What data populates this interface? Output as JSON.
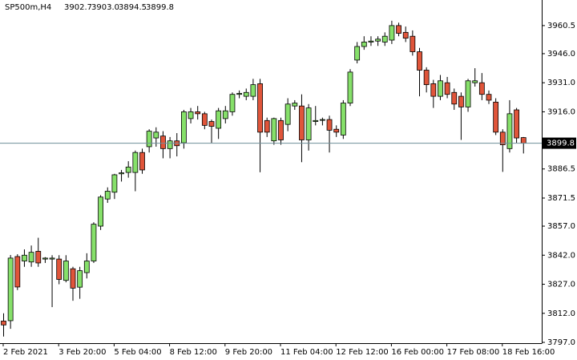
{
  "chart_data": {
    "type": "candlestick",
    "title": "SP500m,H4",
    "ohlc_labels": [
      "3902.7",
      "3903.0",
      "3894.5",
      "3899.8"
    ],
    "categories": [
      "2 Feb 2021",
      null,
      null,
      null,
      null,
      null,
      null,
      null,
      "3 Feb 20:00",
      null,
      null,
      null,
      null,
      null,
      null,
      null,
      "5 Feb 04:00",
      null,
      null,
      null,
      null,
      null,
      null,
      null,
      "8 Feb 12:00",
      null,
      null,
      null,
      null,
      null,
      null,
      null,
      "9 Feb 20:00",
      null,
      null,
      null,
      null,
      null,
      null,
      null,
      "11 Feb 04:00",
      null,
      null,
      null,
      null,
      null,
      null,
      null,
      "12 Feb 12:00",
      null,
      null,
      null,
      null,
      null,
      null,
      null,
      "16 Feb 00:00",
      null,
      null,
      null,
      null,
      null,
      null,
      null,
      "17 Feb 08:00",
      null,
      null,
      null,
      null,
      null,
      null,
      null,
      "18 Feb 16:00",
      null,
      null,
      null
    ],
    "open": [
      3808,
      3808.2,
      3841.3,
      3839,
      3838.5,
      3844,
      3840,
      3840,
      3840,
      3829,
      3835,
      3825.5,
      3833,
      3839,
      3857,
      3871,
      3874.5,
      3884,
      3884.7,
      3884.7,
      3895,
      3898,
      3902.5,
      3903.5,
      3897,
      3901,
      3900,
      3912.5,
      3916,
      3915,
      3911,
      3907.5,
      3912.5,
      3916,
      3925,
      3924,
      3924,
      3930.5,
      3911.5,
      3901,
      3911.5,
      3909.5,
      3919,
      3919,
      3901.5,
      3911,
      3912,
      3912,
      3907,
      3904,
      3920.5,
      3942.7,
      3949.7,
      3952,
      3952.5,
      3952,
      3953,
      3960.5,
      3957,
      3955,
      3947,
      3937.5,
      3930.5,
      3924,
      3931,
      3926,
      3924,
      3918.5,
      3931,
      3931,
      3925,
      3921,
      3905.5,
      3897,
      3917,
      3902.7
    ],
    "high": [
      3812,
      3842.1,
      3842.5,
      3845,
      3847,
      3851,
      3841,
      3842,
      3842,
      3842,
      3836,
      3836,
      3843,
      3859,
      3873,
      3877,
      3884,
      3886,
      3890.5,
      3896,
      3897,
      3907,
      3908,
      3906,
      3903,
      3905,
      3917,
      3918,
      3919,
      3916,
      3912,
      3918,
      3919,
      3926,
      3927,
      3928,
      3933,
      3933,
      3913,
      3913,
      3913,
      3923,
      3922,
      3925,
      3920,
      3919,
      3913,
      3914,
      3909,
      3922,
      3938,
      3952,
      3955,
      3955,
      3955,
      3957,
      3963,
      3962,
      3960,
      3958,
      3949,
      3939,
      3932.5,
      3935,
      3934,
      3928,
      3926,
      3933,
      3938.5,
      3936,
      3927,
      3923,
      3907,
      3922,
      3918,
      3903
    ],
    "low": [
      3800,
      3804,
      3824,
      3836,
      3836,
      3836,
      3838,
      3815.2,
      3827,
      3828,
      3818.5,
      3819.5,
      3830,
      3838,
      3855,
      3869,
      3871,
      3880,
      3882,
      3875,
      3884,
      3895,
      3898,
      3892,
      3892,
      3893,
      3897,
      3910,
      3912,
      3907,
      3900,
      3902,
      3910,
      3914,
      3923,
      3922,
      3922,
      3884.8,
      3903,
      3899,
      3899,
      3906,
      3917,
      3890,
      3896,
      3909,
      3909,
      3895,
      3903,
      3902,
      3919,
      3941,
      3948,
      3950,
      3950,
      3950,
      3951,
      3955,
      3952,
      3945,
      3924,
      3926,
      3918,
      3922,
      3923,
      3917,
      3901.5,
      3916,
      3929,
      3922,
      3920,
      3904,
      3885,
      3895,
      3900,
      3894.5
    ],
    "close": [
      3806,
      3840.5,
      3825.6,
      3842,
      3843.5,
      3838,
      3840.5,
      3840.5,
      3829.5,
      3839,
      3825,
      3834,
      3839,
      3858,
      3872,
      3875,
      3883.5,
      3884.5,
      3887.5,
      3895,
      3886,
      3906,
      3905.5,
      3897,
      3901,
      3898.5,
      3916,
      3916,
      3915,
      3909,
      3908.5,
      3916.5,
      3916.5,
      3925,
      3925.5,
      3926,
      3930,
      3905.5,
      3905.5,
      3912.5,
      3901.5,
      3920,
      3920.5,
      3901.5,
      3918,
      3911.5,
      3912,
      3906.5,
      3905.5,
      3920.5,
      3936.5,
      3949.7,
      3952,
      3952.5,
      3953.5,
      3955,
      3960.5,
      3956.5,
      3954,
      3947,
      3937.5,
      3930,
      3924,
      3932,
      3925,
      3920,
      3918.5,
      3932,
      3932,
      3925,
      3922,
      3905.5,
      3899,
      3915,
      3902.5,
      3899.8
    ],
    "up_color": "#86e06a",
    "down_color": "#e0553a",
    "current_price": 3899.8,
    "ylim": [
      3796.6,
      3973.7
    ],
    "yticks": [
      {
        "value": 3960.5,
        "label": "3960.5"
      },
      {
        "value": 3946,
        "label": "3946.0"
      },
      {
        "value": 3931,
        "label": "3931.0"
      },
      {
        "value": 3916,
        "label": "3916.0"
      },
      3886.5,
      3871.5,
      {
        "value": 3857,
        "label": "3857.0"
      },
      {
        "value": 3842,
        "label": "3842.0"
      },
      {
        "value": 3827,
        "label": "3827.0"
      },
      {
        "value": 3812,
        "label": "3812.0"
      },
      {
        "value": 3797,
        "label": "3797.0"
      }
    ]
  }
}
